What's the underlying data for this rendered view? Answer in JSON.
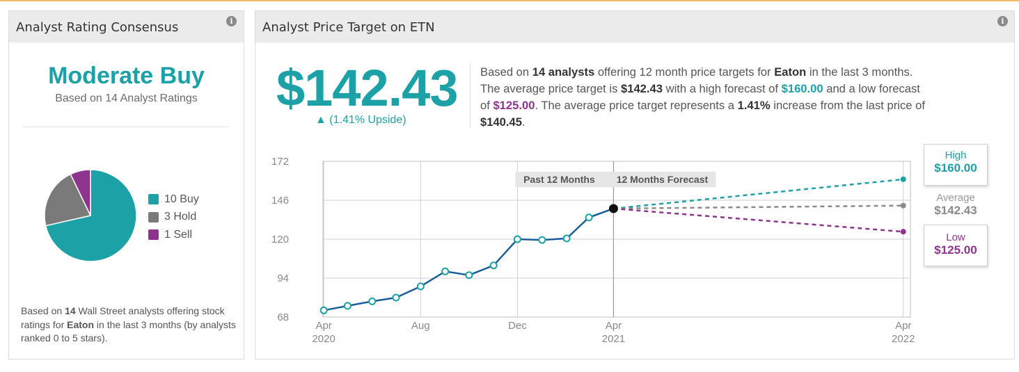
{
  "rating_panel": {
    "title": "Analyst Rating Consensus",
    "info_icon": "i",
    "consensus": "Moderate Buy",
    "subtitle": "Based on 14 Analyst Ratings",
    "legend": [
      {
        "label": "10 Buy",
        "count": 10,
        "color": "#1ba1a6"
      },
      {
        "label": "3 Hold",
        "count": 3,
        "color": "#7a7a7a"
      },
      {
        "label": "1 Sell",
        "count": 1,
        "color": "#8e338e"
      }
    ],
    "footnote": {
      "p1": "Based on ",
      "count": "14",
      "p2": " Wall Street analysts offering stock ratings for ",
      "company": "Eaton",
      "p3": " in the last 3 months (by analysts ranked 0 to 5 stars)."
    }
  },
  "target_panel": {
    "title": "Analyst Price Target on ETN",
    "info_icon": "i",
    "price": "$142.43",
    "upside": "▲ (1.41% Upside)",
    "summary": {
      "t1": "Based on ",
      "analysts": "14 analysts",
      "t2": " offering 12 month price targets for ",
      "company": "Eaton",
      "t3": " in the last 3 months. The average price target is ",
      "avg": "$142.43",
      "t4": " with a high forecast of ",
      "high": "$160.00",
      "t5": " and a low forecast of ",
      "low": "$125.00",
      "t6": ". The average price target represents a ",
      "pct": "1.41%",
      "t7": " increase from the last price of ",
      "last": "$140.45",
      "t8": "."
    },
    "callouts": {
      "high_label": "High",
      "high_value": "$160.00",
      "avg_label": "Average",
      "avg_value": "$142.43",
      "low_label": "Low",
      "low_value": "$125.00"
    }
  },
  "chart_data": [
    {
      "type": "pie",
      "categories": [
        "Buy",
        "Hold",
        "Sell"
      ],
      "values": [
        10,
        3,
        1
      ],
      "colors": [
        "#1ba1a6",
        "#7a7a7a",
        "#8e338e"
      ]
    },
    {
      "type": "line",
      "ylim": [
        68,
        172
      ],
      "yticks": [
        68,
        94,
        120,
        146,
        172
      ],
      "x_range": [
        "2020-03-31",
        "2022-04-10"
      ],
      "xticks": [
        {
          "date": "2020-04-01",
          "label": "Apr",
          "year": "2020"
        },
        {
          "date": "2020-08-01",
          "label": "Aug",
          "year": ""
        },
        {
          "date": "2020-12-01",
          "label": "Dec",
          "year": ""
        },
        {
          "date": "2021-04-01",
          "label": "Apr",
          "year": "2021"
        },
        {
          "date": "2022-04-01",
          "label": "Apr",
          "year": "2022"
        }
      ],
      "period_labels": [
        "Past 12 Months",
        "12 Months Forecast"
      ],
      "divider_date": "2021-04-01",
      "grid": true,
      "series": [
        {
          "color": "#1a5f9a",
          "points": [
            {
              "x": "2020-04-01",
              "y": 72.5
            },
            {
              "x": "2020-05-01",
              "y": 75.5
            },
            {
              "x": "2020-06-01",
              "y": 78.5
            },
            {
              "x": "2020-07-01",
              "y": 81
            },
            {
              "x": "2020-08-01",
              "y": 88.5
            },
            {
              "x": "2020-09-01",
              "y": 98.5
            },
            {
              "x": "2020-10-01",
              "y": 96
            },
            {
              "x": "2020-11-01",
              "y": 102.5
            },
            {
              "x": "2020-12-01",
              "y": 120
            },
            {
              "x": "2021-01-01",
              "y": 119.5
            },
            {
              "x": "2021-02-01",
              "y": 120.5
            },
            {
              "x": "2021-03-01",
              "y": 134.5
            },
            {
              "x": "2021-04-01",
              "y": 140.45
            }
          ]
        }
      ],
      "forecasts": [
        {
          "name": "High",
          "x": "2022-04-01",
          "y": 160.0,
          "color": "#1ba1a6"
        },
        {
          "name": "Average",
          "x": "2022-04-01",
          "y": 142.43,
          "color": "#8a8a8a"
        },
        {
          "name": "Low",
          "x": "2022-04-01",
          "y": 125.0,
          "color": "#8e338e"
        }
      ]
    }
  ]
}
